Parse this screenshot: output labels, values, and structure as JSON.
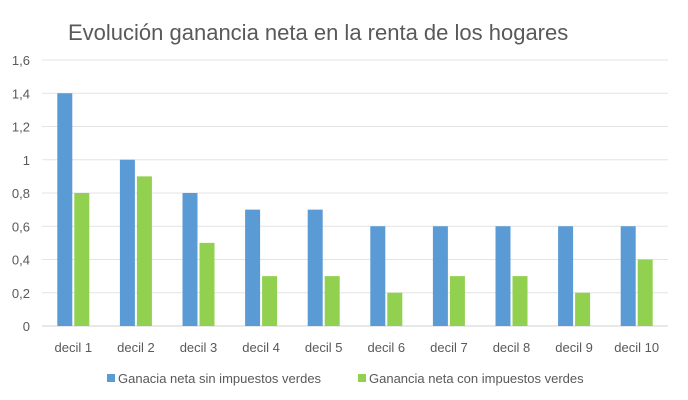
{
  "chart_data": {
    "type": "bar",
    "title": "Evolución ganancia neta en la renta de los hogares",
    "xlabel": "",
    "ylabel": "",
    "categories": [
      "decil 1",
      "decil 2",
      "decil 3",
      "decil 4",
      "decil 5",
      "decil 6",
      "decil 7",
      "decil 8",
      "decil 9",
      "decil 10"
    ],
    "series": [
      {
        "name": "Ganacia neta sin impuestos verdes",
        "color": "#5B9BD5",
        "values": [
          1.4,
          1.0,
          0.8,
          0.7,
          0.7,
          0.6,
          0.6,
          0.6,
          0.6,
          0.6
        ]
      },
      {
        "name": "Ganancia neta con impuestos verdes",
        "color": "#92D050",
        "values": [
          0.8,
          0.9,
          0.5,
          0.3,
          0.3,
          0.2,
          0.3,
          0.3,
          0.2,
          0.4
        ]
      }
    ],
    "ylim": [
      0,
      1.6
    ],
    "yticks": [
      0,
      0.2,
      0.4,
      0.6,
      0.8,
      1,
      1.2,
      1.4,
      1.6
    ],
    "ytick_labels": [
      "0",
      "0,2",
      "0,4",
      "0,6",
      "0,8",
      "1",
      "1,2",
      "1,4",
      "1,6"
    ],
    "grid": true,
    "legend_position": "bottom"
  }
}
